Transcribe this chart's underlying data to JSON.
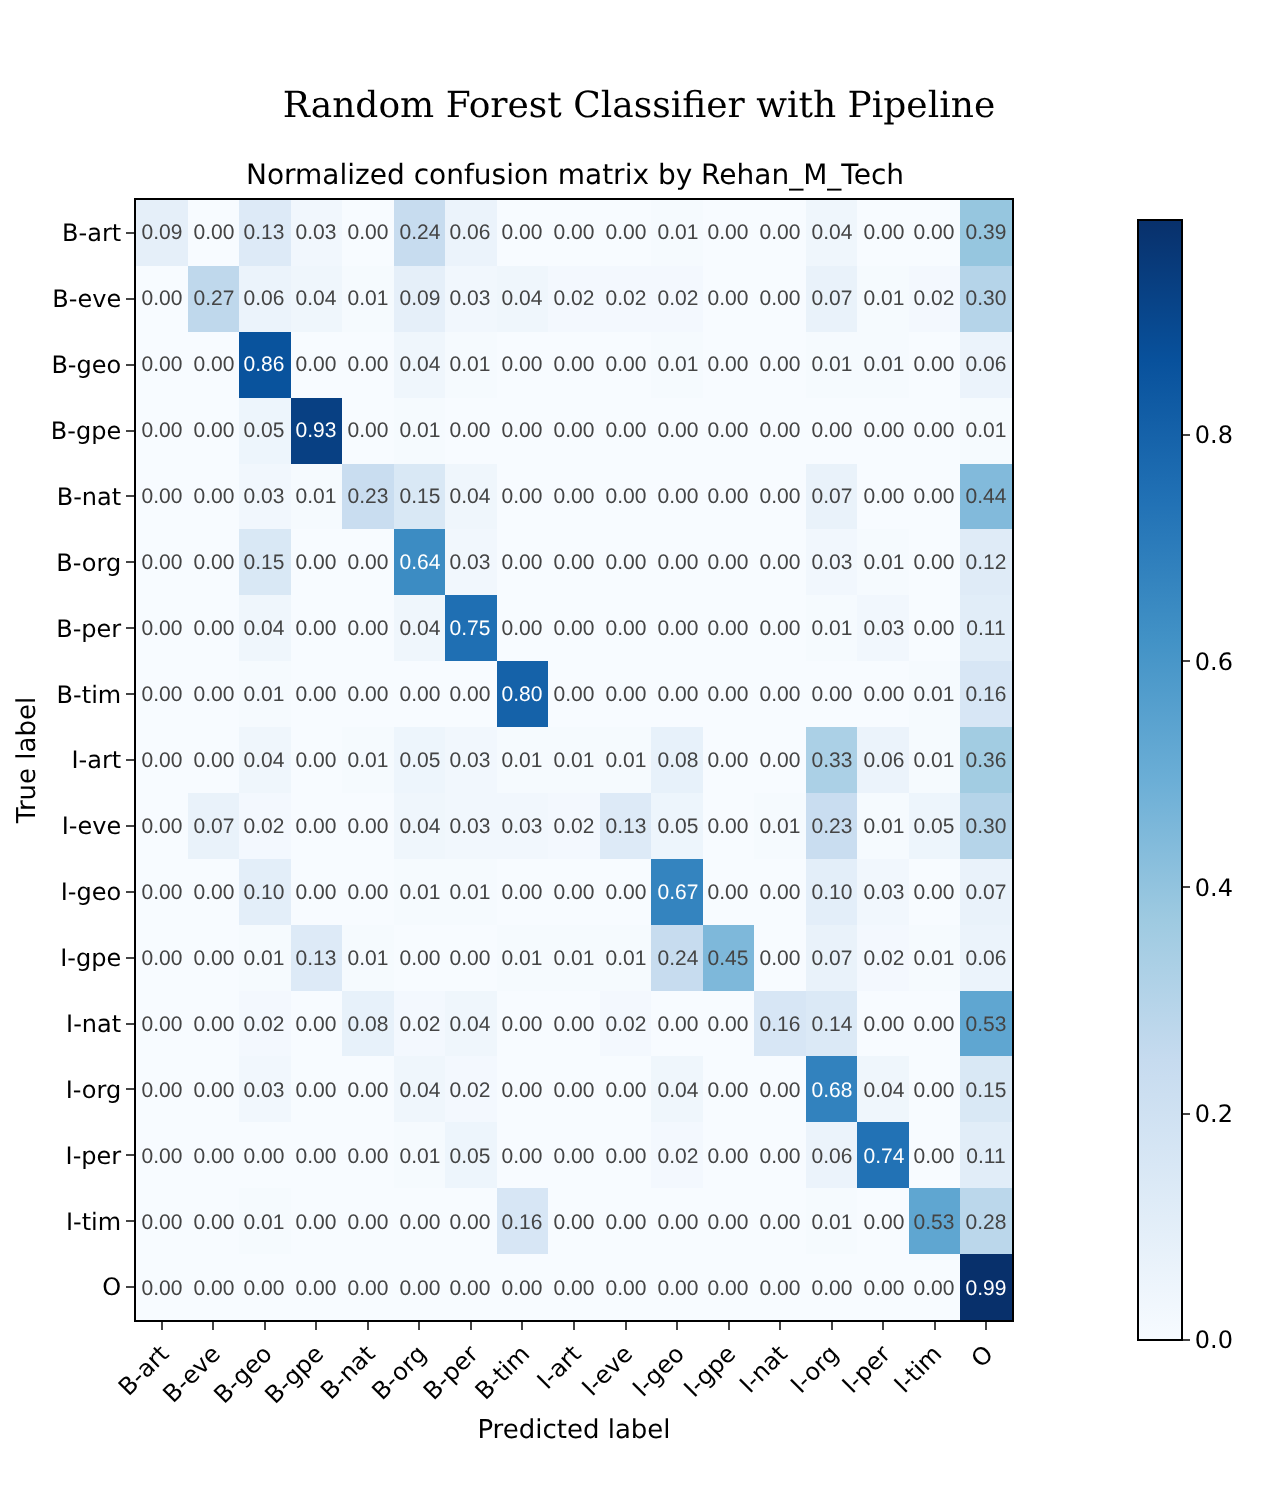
{
  "chart_data": {
    "type": "heatmap",
    "title": "Random Forest Classifier with Pipeline",
    "subtitle": "Normalized confusion matrix by Rehan_M_Tech",
    "xlabel": "Predicted label",
    "ylabel": "True label",
    "categories": [
      "B-art",
      "B-eve",
      "B-geo",
      "B-gpe",
      "B-nat",
      "B-org",
      "B-per",
      "B-tim",
      "I-art",
      "I-eve",
      "I-geo",
      "I-gpe",
      "I-nat",
      "I-org",
      "I-per",
      "I-tim",
      "O"
    ],
    "y_categories": [
      "B-art",
      "B-eve",
      "B-geo",
      "B-gpe",
      "B-nat",
      "B-org",
      "B-per",
      "B-tim",
      "I-art",
      "I-eve",
      "I-geo",
      "I-gpe",
      "I-nat",
      "I-org",
      "I-per",
      "I-tim",
      "O"
    ],
    "cells": [
      [
        0.09,
        0.0,
        0.13,
        0.03,
        0.0,
        0.24,
        0.06,
        0.0,
        0.0,
        0.0,
        0.01,
        0.0,
        0.0,
        0.04,
        0.0,
        0.0,
        0.39
      ],
      [
        0.0,
        0.27,
        0.06,
        0.04,
        0.01,
        0.09,
        0.03,
        0.04,
        0.02,
        0.02,
        0.02,
        0.0,
        0.0,
        0.07,
        0.01,
        0.02,
        0.3
      ],
      [
        0.0,
        0.0,
        0.86,
        0.0,
        0.0,
        0.04,
        0.01,
        0.0,
        0.0,
        0.0,
        0.01,
        0.0,
        0.0,
        0.01,
        0.01,
        0.0,
        0.06
      ],
      [
        0.0,
        0.0,
        0.05,
        0.93,
        0.0,
        0.01,
        0.0,
        0.0,
        0.0,
        0.0,
        0.0,
        0.0,
        0.0,
        0.0,
        0.0,
        0.0,
        0.01
      ],
      [
        0.0,
        0.0,
        0.03,
        0.01,
        0.23,
        0.15,
        0.04,
        0.0,
        0.0,
        0.0,
        0.0,
        0.0,
        0.0,
        0.07,
        0.0,
        0.0,
        0.44
      ],
      [
        0.0,
        0.0,
        0.15,
        0.0,
        0.0,
        0.64,
        0.03,
        0.0,
        0.0,
        0.0,
        0.0,
        0.0,
        0.0,
        0.03,
        0.01,
        0.0,
        0.12
      ],
      [
        0.0,
        0.0,
        0.04,
        0.0,
        0.0,
        0.04,
        0.75,
        0.0,
        0.0,
        0.0,
        0.0,
        0.0,
        0.0,
        0.01,
        0.03,
        0.0,
        0.11
      ],
      [
        0.0,
        0.0,
        0.01,
        0.0,
        0.0,
        0.0,
        0.0,
        0.8,
        0.0,
        0.0,
        0.0,
        0.0,
        0.0,
        0.0,
        0.0,
        0.01,
        0.16
      ],
      [
        0.0,
        0.0,
        0.04,
        0.0,
        0.01,
        0.05,
        0.03,
        0.01,
        0.01,
        0.01,
        0.08,
        0.0,
        0.0,
        0.33,
        0.06,
        0.01,
        0.36
      ],
      [
        0.0,
        0.07,
        0.02,
        0.0,
        0.0,
        0.04,
        0.03,
        0.03,
        0.02,
        0.13,
        0.05,
        0.0,
        0.01,
        0.23,
        0.01,
        0.05,
        0.3
      ],
      [
        0.0,
        0.0,
        0.1,
        0.0,
        0.0,
        0.01,
        0.01,
        0.0,
        0.0,
        0.0,
        0.67,
        0.0,
        0.0,
        0.1,
        0.03,
        0.0,
        0.07
      ],
      [
        0.0,
        0.0,
        0.01,
        0.13,
        0.01,
        0.0,
        0.0,
        0.01,
        0.01,
        0.01,
        0.24,
        0.45,
        0.0,
        0.07,
        0.02,
        0.01,
        0.06
      ],
      [
        0.0,
        0.0,
        0.02,
        0.0,
        0.08,
        0.02,
        0.04,
        0.0,
        0.0,
        0.02,
        0.0,
        0.0,
        0.16,
        0.14,
        0.0,
        0.0,
        0.53
      ],
      [
        0.0,
        0.0,
        0.03,
        0.0,
        0.0,
        0.04,
        0.02,
        0.0,
        0.0,
        0.0,
        0.04,
        0.0,
        0.0,
        0.68,
        0.04,
        0.0,
        0.15
      ],
      [
        0.0,
        0.0,
        0.0,
        0.0,
        0.0,
        0.01,
        0.05,
        0.0,
        0.0,
        0.0,
        0.02,
        0.0,
        0.0,
        0.06,
        0.74,
        0.0,
        0.11
      ],
      [
        0.0,
        0.0,
        0.01,
        0.0,
        0.0,
        0.0,
        0.0,
        0.16,
        0.0,
        0.0,
        0.0,
        0.0,
        0.0,
        0.01,
        0.0,
        0.53,
        0.28
      ],
      [
        0.0,
        0.0,
        0.0,
        0.0,
        0.0,
        0.0,
        0.0,
        0.0,
        0.0,
        0.0,
        0.0,
        0.0,
        0.0,
        0.0,
        0.0,
        0.0,
        0.99
      ]
    ],
    "cell_labels": [
      [
        "0.09",
        "0.00",
        "0.13",
        "0.03",
        "0.00",
        "0.24",
        "0.06",
        "0.00",
        "0.00",
        "0.00",
        "0.01",
        "0.00",
        "0.00",
        "0.04",
        "0.00",
        "0.00",
        "0.39"
      ],
      [
        "0.00",
        "0.27",
        "0.06",
        "0.04",
        "0.01",
        "0.09",
        "0.03",
        "0.04",
        "0.02",
        "0.02",
        "0.02",
        "0.00",
        "0.00",
        "0.07",
        "0.01",
        "0.02",
        "0.30"
      ],
      [
        "0.00",
        "0.00",
        "0.86",
        "0.00",
        "0.00",
        "0.04",
        "0.01",
        "0.00",
        "0.00",
        "0.00",
        "0.01",
        "0.00",
        "0.00",
        "0.01",
        "0.01",
        "0.00",
        "0.06"
      ],
      [
        "0.00",
        "0.00",
        "0.05",
        "0.93",
        "0.00",
        "0.01",
        "0.00",
        "0.00",
        "0.00",
        "0.00",
        "0.00",
        "0.00",
        "0.00",
        "0.00",
        "0.00",
        "0.00",
        "0.01"
      ],
      [
        "0.00",
        "0.00",
        "0.03",
        "0.01",
        "0.23",
        "0.15",
        "0.04",
        "0.00",
        "0.00",
        "0.00",
        "0.00",
        "0.00",
        "0.00",
        "0.07",
        "0.00",
        "0.00",
        "0.44"
      ],
      [
        "0.00",
        "0.00",
        "0.15",
        "0.00",
        "0.00",
        "0.64",
        "0.03",
        "0.00",
        "0.00",
        "0.00",
        "0.00",
        "0.00",
        "0.00",
        "0.03",
        "0.01",
        "0.00",
        "0.12"
      ],
      [
        "0.00",
        "0.00",
        "0.04",
        "0.00",
        "0.00",
        "0.04",
        "0.75",
        "0.00",
        "0.00",
        "0.00",
        "0.00",
        "0.00",
        "0.00",
        "0.01",
        "0.03",
        "0.00",
        "0.11"
      ],
      [
        "0.00",
        "0.00",
        "0.01",
        "0.00",
        "0.00",
        "0.00",
        "0.00",
        "0.80",
        "0.00",
        "0.00",
        "0.00",
        "0.00",
        "0.00",
        "0.00",
        "0.00",
        "0.01",
        "0.16"
      ],
      [
        "0.00",
        "0.00",
        "0.04",
        "0.00",
        "0.01",
        "0.05",
        "0.03",
        "0.01",
        "0.01",
        "0.01",
        "0.08",
        "0.00",
        "0.00",
        "0.33",
        "0.06",
        "0.01",
        "0.36"
      ],
      [
        "0.00",
        "0.07",
        "0.02",
        "0.00",
        "0.00",
        "0.04",
        "0.03",
        "0.03",
        "0.02",
        "0.13",
        "0.05",
        "0.00",
        "0.01",
        "0.23",
        "0.01",
        "0.05",
        "0.30"
      ],
      [
        "0.00",
        "0.00",
        "0.10",
        "0.00",
        "0.00",
        "0.01",
        "0.01",
        "0.00",
        "0.00",
        "0.00",
        "0.67",
        "0.00",
        "0.00",
        "0.10",
        "0.03",
        "0.00",
        "0.07"
      ],
      [
        "0.00",
        "0.00",
        "0.01",
        "0.13",
        "0.01",
        "0.00",
        "0.00",
        "0.01",
        "0.01",
        "0.01",
        "0.24",
        "0.45",
        "0.00",
        "0.07",
        "0.02",
        "0.01",
        "0.06"
      ],
      [
        "0.00",
        "0.00",
        "0.02",
        "0.00",
        "0.08",
        "0.02",
        "0.04",
        "0.00",
        "0.00",
        "0.02",
        "0.00",
        "0.00",
        "0.16",
        "0.14",
        "0.00",
        "0.00",
        "0.53"
      ],
      [
        "0.00",
        "0.00",
        "0.03",
        "0.00",
        "0.00",
        "0.04",
        "0.02",
        "0.00",
        "0.00",
        "0.00",
        "0.04",
        "0.00",
        "0.00",
        "0.68",
        "0.04",
        "0.00",
        "0.15"
      ],
      [
        "0.00",
        "0.00",
        "0.00",
        "0.00",
        "0.00",
        "0.01",
        "0.05",
        "0.00",
        "0.00",
        "0.00",
        "0.02",
        "0.00",
        "0.00",
        "0.06",
        "0.74",
        "0.00",
        "0.11"
      ],
      [
        "0.00",
        "0.00",
        "0.01",
        "0.00",
        "0.00",
        "0.00",
        "0.00",
        "0.16",
        "0.00",
        "0.00",
        "0.00",
        "0.00",
        "0.00",
        "0.01",
        "0.00",
        "0.53",
        "0.28"
      ],
      [
        "0.00",
        "0.00",
        "0.00",
        "0.00",
        "0.00",
        "0.00",
        "0.00",
        "0.00",
        "0.00",
        "0.00",
        "0.00",
        "0.00",
        "0.00",
        "0.00",
        "0.00",
        "0.00",
        "0.99"
      ]
    ],
    "clim": [
      0,
      0.99
    ],
    "cticks": [
      {
        "value": 0,
        "label": "0.0"
      },
      {
        "value": 0.2,
        "label": "0.2"
      },
      {
        "value": 0.4,
        "label": "0.4"
      },
      {
        "value": 0.6,
        "label": "0.6"
      },
      {
        "value": 0.8,
        "label": "0.8"
      }
    ]
  }
}
